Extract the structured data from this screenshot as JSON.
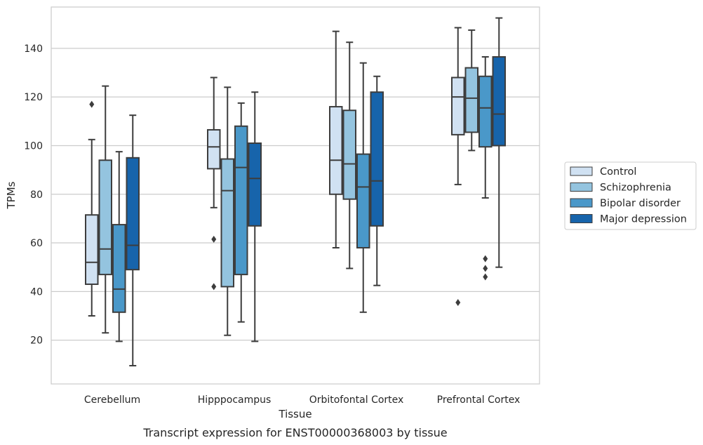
{
  "chart_data": {
    "type": "boxplot",
    "title": "Transcript expression for ENST00000368003 by tissue",
    "xlabel": "Tissue",
    "ylabel": "TPMs",
    "ylim": [
      2,
      157
    ],
    "yticks": [
      20,
      40,
      60,
      80,
      100,
      120,
      140
    ],
    "grid": true,
    "legend_position": "right",
    "categories": [
      "Cerebellum",
      "Hipppocampus",
      "Orbitofontal Cortex",
      "Prefrontal Cortex"
    ],
    "series": [
      {
        "name": "Control",
        "color": "#d0e1f2",
        "boxes": [
          {
            "whislo": 30,
            "q1": 43,
            "med": 52,
            "q3": 71.5,
            "whishi": 102.5,
            "fliers": [
              117
            ]
          },
          {
            "whislo": 74.5,
            "q1": 90.5,
            "med": 99.5,
            "q3": 106.5,
            "whishi": 128,
            "fliers": [
              61.5,
              42
            ]
          },
          {
            "whislo": 58,
            "q1": 80,
            "med": 94,
            "q3": 116,
            "whishi": 147,
            "fliers": []
          },
          {
            "whislo": 84,
            "q1": 104.5,
            "med": 120,
            "q3": 128,
            "whishi": 148.5,
            "fliers": [
              35.5
            ]
          }
        ]
      },
      {
        "name": "Schizophrenia",
        "color": "#94c4df",
        "boxes": [
          {
            "whislo": 23,
            "q1": 47,
            "med": 57.5,
            "q3": 94,
            "whishi": 124.5,
            "fliers": []
          },
          {
            "whislo": 22,
            "q1": 42,
            "med": 81.5,
            "q3": 94.5,
            "whishi": 124,
            "fliers": []
          },
          {
            "whislo": 49.5,
            "q1": 78,
            "med": 92.5,
            "q3": 114.5,
            "whishi": 142.5,
            "fliers": []
          },
          {
            "whislo": 98,
            "q1": 105.5,
            "med": 119.5,
            "q3": 132,
            "whishi": 147.5,
            "fliers": []
          }
        ]
      },
      {
        "name": "Bipolar disorder",
        "color": "#4a98c9",
        "boxes": [
          {
            "whislo": 19.5,
            "q1": 31.5,
            "med": 41,
            "q3": 67.5,
            "whishi": 97.5,
            "fliers": []
          },
          {
            "whislo": 27.5,
            "q1": 47,
            "med": 91,
            "q3": 108,
            "whishi": 117.5,
            "fliers": []
          },
          {
            "whislo": 31.5,
            "q1": 58,
            "med": 83,
            "q3": 96.5,
            "whishi": 134,
            "fliers": []
          },
          {
            "whislo": 78.5,
            "q1": 99.5,
            "med": 115.5,
            "q3": 128.5,
            "whishi": 136.5,
            "fliers": [
              46,
              53.5,
              49.5
            ]
          }
        ]
      },
      {
        "name": "Major depression",
        "color": "#1764ab",
        "boxes": [
          {
            "whislo": 9.5,
            "q1": 49,
            "med": 59,
            "q3": 95,
            "whishi": 112.5,
            "fliers": []
          },
          {
            "whislo": 19.5,
            "q1": 67,
            "med": 86.5,
            "q3": 101,
            "whishi": 122,
            "fliers": []
          },
          {
            "whislo": 42.5,
            "q1": 67,
            "med": 85.5,
            "q3": 122,
            "whishi": 128.5,
            "fliers": []
          },
          {
            "whislo": 50,
            "q1": 100,
            "med": 113,
            "q3": 136.5,
            "whishi": 152.5,
            "fliers": []
          }
        ]
      }
    ]
  }
}
